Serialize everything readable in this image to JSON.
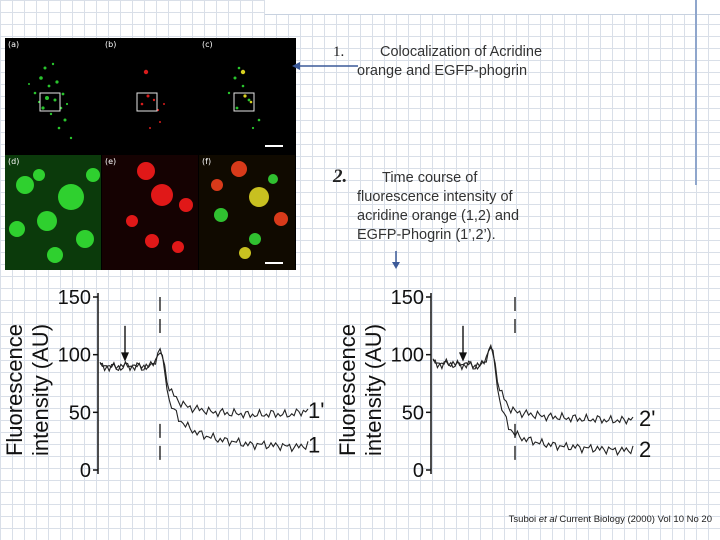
{
  "panels": [
    "(a)",
    "(b)",
    "(c)",
    "(d)",
    "(e)",
    "(f)"
  ],
  "item1": {
    "number": "1.",
    "line1": "Colocalization of Acridine",
    "line2": "orange and EGFP-phogrin"
  },
  "item2": {
    "number": "2.",
    "line1": "Time course of",
    "line2": "fluorescence intensity of",
    "line3": "acridine orange (1,2) and",
    "line4": "EGFP-Phogrin (1’,2’)."
  },
  "chart_data": [
    {
      "type": "line",
      "ylabel_line1": "Fluorescence",
      "ylabel_line2": "intensity (AU)",
      "yticks": [
        "150",
        "100",
        "50",
        "0"
      ],
      "ylim": [
        0,
        150
      ],
      "series": [
        {
          "name": "1'",
          "values": [
            90,
            90,
            89,
            91,
            90,
            89,
            90,
            105,
            70,
            60,
            55,
            53,
            52,
            50,
            50,
            49,
            49,
            48,
            48,
            48,
            49,
            48,
            48,
            50,
            52
          ]
        },
        {
          "name": "1",
          "values": [
            90,
            90,
            89,
            90,
            90,
            90,
            90,
            105,
            60,
            45,
            38,
            33,
            30,
            28,
            26,
            25,
            24,
            22,
            22,
            22,
            21,
            21,
            20,
            20,
            22
          ]
        }
      ],
      "markers": {
        "arrow": true,
        "dashed_lines": 2
      }
    },
    {
      "type": "line",
      "ylabel_line1": "Fluorescence",
      "ylabel_line2": "intensity (AU)",
      "yticks": [
        "150",
        "100",
        "50",
        "0"
      ],
      "ylim": [
        0,
        150
      ],
      "series": [
        {
          "name": "2'",
          "values": [
            93,
            92,
            93,
            91,
            92,
            90,
            91,
            108,
            70,
            55,
            50,
            49,
            48,
            47,
            46,
            46,
            45,
            45,
            44,
            44,
            44,
            43,
            43,
            43,
            45
          ]
        },
        {
          "name": "2",
          "values": [
            93,
            92,
            92,
            91,
            92,
            90,
            91,
            110,
            60,
            38,
            30,
            27,
            25,
            23,
            22,
            21,
            20,
            20,
            19,
            19,
            18,
            18,
            17,
            17,
            18
          ]
        }
      ],
      "markers": {
        "arrow": true,
        "dashed_lines": 2
      }
    }
  ],
  "credit": {
    "author": "Tsuboi ",
    "etal": "et al",
    "rest": " Current Biology (2000) Vol 10 No 20"
  },
  "colors": {
    "green": "#27c427",
    "red": "#e01818",
    "yellow": "#d8d020",
    "grid": "#d9dfe8",
    "accent": "#3c5a99"
  }
}
